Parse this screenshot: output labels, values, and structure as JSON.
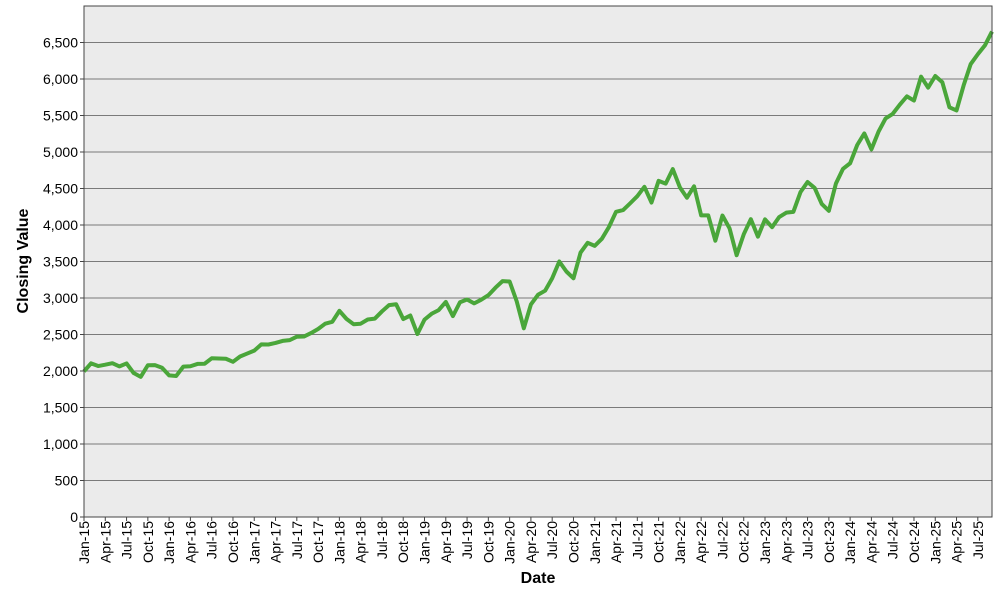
{
  "chart_data": {
    "type": "line",
    "x_label": "Date",
    "y_label": "Closing Value",
    "categories": [
      "Jan-15",
      null,
      null,
      "Apr-15",
      null,
      null,
      "Jul-15",
      null,
      null,
      "Oct-15",
      null,
      null,
      "Jan-16",
      null,
      null,
      "Apr-16",
      null,
      null,
      "Jul-16",
      null,
      null,
      "Oct-16",
      null,
      null,
      "Jan-17",
      null,
      null,
      "Apr-17",
      null,
      null,
      "Jul-17",
      null,
      null,
      "Oct-17",
      null,
      null,
      "Jan-18",
      null,
      null,
      "Apr-18",
      null,
      null,
      "Jul-18",
      null,
      null,
      "Oct-18",
      null,
      null,
      "Jan-19",
      null,
      null,
      "Apr-19",
      null,
      null,
      "Jul-19",
      null,
      null,
      "Oct-19",
      null,
      null,
      "Jan-20",
      null,
      null,
      "Apr-20",
      null,
      null,
      "Jul-20",
      null,
      null,
      "Oct-20",
      null,
      null,
      "Jan-21",
      null,
      null,
      "Apr-21",
      null,
      null,
      "Jul-21",
      null,
      null,
      "Oct-21",
      null,
      null,
      "Jan-22",
      null,
      null,
      "Apr-22",
      null,
      null,
      "Jul-22",
      null,
      null,
      "Oct-22",
      null,
      null,
      "Jan-23",
      null,
      null,
      "Apr-23",
      null,
      null,
      "Jul-23",
      null,
      null,
      "Oct-23",
      null,
      null,
      "Jan-24",
      null,
      null,
      "Apr-24",
      null,
      null,
      "Jul-24",
      null,
      null,
      "Oct-24",
      null,
      null,
      "Jan-25",
      null,
      null,
      "Apr-25",
      null,
      null,
      "Jul-25",
      null,
      null
    ],
    "series": [
      {
        "color": "#4aa63a",
        "values": [
          1995,
          2105,
          2068,
          2086,
          2107,
          2063,
          2104,
          1972,
          1920,
          2079,
          2080,
          2044,
          1940,
          1932,
          2060,
          2065,
          2097,
          2099,
          2174,
          2171,
          2168,
          2126,
          2199,
          2239,
          2279,
          2364,
          2363,
          2384,
          2412,
          2423,
          2470,
          2472,
          2519,
          2575,
          2648,
          2674,
          2824,
          2714,
          2641,
          2648,
          2705,
          2718,
          2816,
          2902,
          2914,
          2712,
          2760,
          2507,
          2704,
          2784,
          2834,
          2946,
          2752,
          2942,
          2980,
          2926,
          2977,
          3038,
          3141,
          3231,
          3226,
          2954,
          2585,
          2912,
          3044,
          3100,
          3271,
          3500,
          3363,
          3270,
          3622,
          3756,
          3714,
          3811,
          3973,
          4181,
          4204,
          4298,
          4395,
          4523,
          4308,
          4605,
          4567,
          4766,
          4516,
          4374,
          4530,
          4132,
          4132,
          3785,
          4130,
          3955,
          3586,
          3872,
          4080,
          3840,
          4077,
          3970,
          4109,
          4169,
          4180,
          4450,
          4589,
          4508,
          4288,
          4194,
          4568,
          4770,
          4846,
          5096,
          5254,
          5036,
          5278,
          5460,
          5522,
          5648,
          5762,
          5705,
          6032,
          5882,
          6041,
          5955,
          5612,
          5569,
          5912,
          6205,
          6339,
          6460,
          6650
        ]
      }
    ],
    "ylim": [
      0,
      7000
    ],
    "yticks": [
      0,
      500,
      {
        "value": 1000,
        "label": "1,000"
      },
      {
        "value": 1500,
        "label": "1,500"
      },
      {
        "value": 2000,
        "label": "2,000"
      },
      {
        "value": 2500,
        "label": "2,500"
      },
      {
        "value": 3000,
        "label": "3,000"
      },
      {
        "value": 3500,
        "label": "3,500"
      },
      {
        "value": 4000,
        "label": "4,000"
      },
      {
        "value": 4500,
        "label": "4,500"
      },
      {
        "value": 5000,
        "label": "5,000"
      },
      {
        "value": 5500,
        "label": "5,500"
      },
      {
        "value": 6000,
        "label": "6,000"
      },
      {
        "value": 6500,
        "label": "6,500"
      }
    ],
    "grid": true
  }
}
